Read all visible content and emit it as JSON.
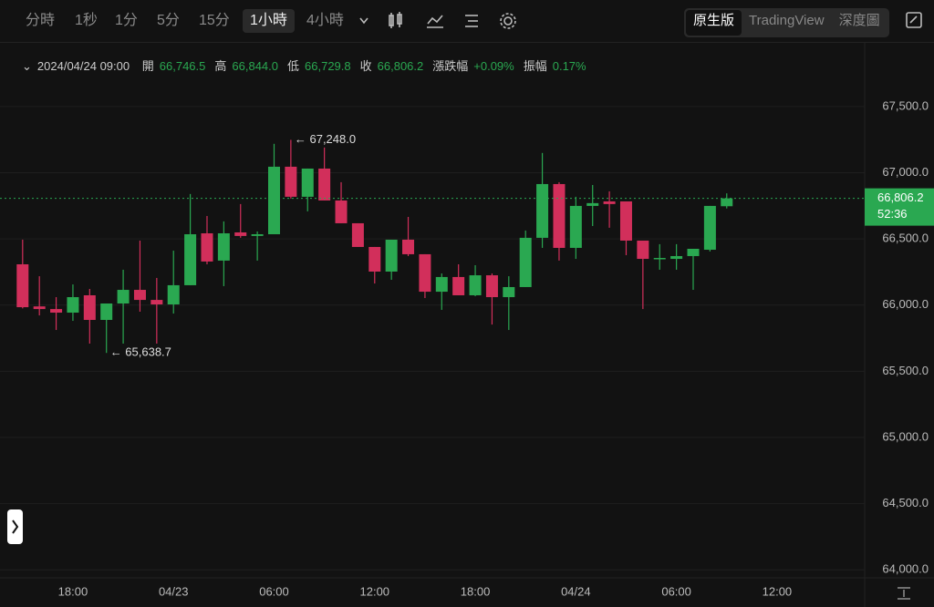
{
  "toolbar": {
    "intervals": [
      {
        "label": "分時",
        "active": false
      },
      {
        "label": "1秒",
        "active": false
      },
      {
        "label": "1分",
        "active": false
      },
      {
        "label": "5分",
        "active": false
      },
      {
        "label": "15分",
        "active": false
      },
      {
        "label": "1小時",
        "active": true
      },
      {
        "label": "4小時",
        "active": false
      }
    ],
    "views": [
      {
        "label": "原生版",
        "active": true
      },
      {
        "label": "TradingView",
        "active": false
      },
      {
        "label": "深度圖",
        "active": false
      }
    ]
  },
  "info_bar": {
    "time": "2024/04/24 09:00",
    "fields": [
      {
        "name": "開",
        "value": "66,746.5"
      },
      {
        "name": "高",
        "value": "66,844.0"
      },
      {
        "name": "低",
        "value": "66,729.8"
      },
      {
        "name": "收",
        "value": "66,806.2"
      },
      {
        "name": "漲跌幅",
        "value": "+0.09%"
      },
      {
        "name": "振幅",
        "value": "0.17%"
      }
    ]
  },
  "chart_data": {
    "type": "candlestick",
    "categories": [
      null,
      null,
      null,
      "18:00",
      null,
      null,
      null,
      null,
      null,
      "04/23",
      null,
      null,
      null,
      null,
      null,
      "06:00",
      null,
      null,
      null,
      null,
      null,
      "12:00",
      null,
      null,
      null,
      null,
      null,
      "18:00",
      null,
      null,
      null,
      null,
      null,
      "04/24",
      null,
      null,
      null,
      null,
      null,
      "06:00",
      null,
      null,
      null,
      null,
      null,
      "12:00"
    ],
    "open": [
      66308,
      65990,
      65970,
      65943,
      66074,
      65888,
      66012,
      66115,
      66039,
      66005,
      66150,
      66542,
      66336,
      66549,
      66522,
      66535,
      67045,
      66818,
      67031,
      66790,
      66618,
      66439,
      66253,
      66494,
      66384,
      66101,
      66212,
      66074,
      66225,
      66060,
      66136,
      66508,
      66914,
      66432,
      66749,
      66783,
      66783,
      66487,
      66349,
      66349,
      66370,
      66418,
      66746.5,
      null,
      null,
      null
    ],
    "high": [
      66494,
      66218,
      66060,
      66156,
      66122,
      66012,
      66267,
      66487,
      66205,
      66411,
      66839,
      66673,
      66632,
      66763,
      66556,
      67218,
      67248.0,
      67031,
      67190,
      66928,
      66618,
      66439,
      66494,
      66666,
      66384,
      66239,
      66308,
      66301,
      66239,
      66218,
      66563,
      67149,
      66928,
      66818,
      66907,
      66859,
      66783,
      66487,
      66460,
      66460,
      66425,
      66749,
      66844.0,
      null,
      null,
      null
    ],
    "low": [
      65975,
      65922,
      65812,
      65881,
      65709,
      65638.7,
      65709,
      65950,
      65709,
      65936,
      66150,
      66308,
      66143,
      66508,
      66336,
      66535,
      66804,
      66708,
      66790,
      66618,
      66439,
      66163,
      66191,
      66370,
      66053,
      65964,
      66074,
      66067,
      65853,
      65812,
      66136,
      66432,
      66336,
      66349,
      66597,
      66584,
      66377,
      65970,
      66267,
      66267,
      66115,
      66405,
      66729.8,
      null,
      null,
      null
    ],
    "close": [
      65984,
      65970,
      65943,
      66060,
      65888,
      66012,
      66115,
      66039,
      66005,
      66150,
      66535,
      66329,
      66542,
      66522,
      66535,
      67045,
      66818,
      67031,
      66790,
      66618,
      66439,
      66253,
      66494,
      66384,
      66101,
      66212,
      66074,
      66225,
      66060,
      66136,
      66508,
      66914,
      66432,
      66749,
      66770,
      66763,
      66487,
      66349,
      66356,
      66370,
      66425,
      66749,
      66806.2,
      null,
      null,
      null
    ],
    "up_color": "#2aa851",
    "down_color": "#d22f5b",
    "ylim": [
      63940,
      67960
    ],
    "yticks": [
      {
        "value": 64000,
        "label": "64,000.0"
      },
      {
        "value": 64500,
        "label": "64,500.0"
      },
      {
        "value": 65000,
        "label": "65,000.0"
      },
      {
        "value": 65500,
        "label": "65,500.0"
      },
      {
        "value": 66000,
        "label": "66,000.0"
      },
      {
        "value": 66500,
        "label": "66,500.0"
      },
      {
        "value": 67000,
        "label": "67,000.0"
      },
      {
        "value": 67500,
        "label": "67,500.0"
      }
    ],
    "grid": true,
    "high_annotation": "← 67,248.0",
    "low_annotation": "← 65,638.7",
    "last_price_label": "66,806.2",
    "countdown": "52:36"
  }
}
